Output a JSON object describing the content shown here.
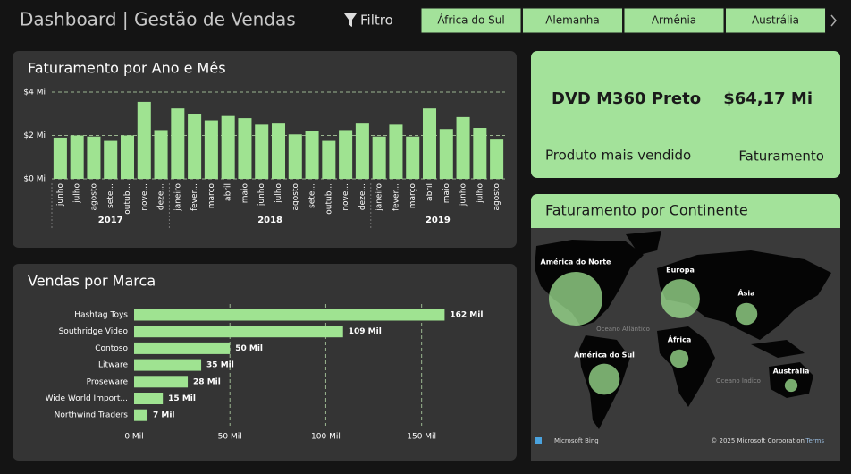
{
  "header": {
    "title": "Dashboard | Gestão de Vendas",
    "filter_label": "Filtro",
    "filter_buttons": [
      "África do Sul",
      "Alemanha",
      "Armênia",
      "Austrália"
    ]
  },
  "kpi": {
    "product": "DVD M360 Preto",
    "revenue": "$64,17 Mi",
    "product_caption": "Produto mais vendido",
    "revenue_caption": "Faturamento"
  },
  "chart_data": [
    {
      "type": "bar",
      "title": "Faturamento por Ano e Mês",
      "color": "#9fe391",
      "groups": [
        {
          "label": "2017",
          "categories": [
            "junho",
            "julho",
            "agosto",
            "sete...",
            "outub...",
            "nove...",
            "deze..."
          ],
          "values": [
            1.9,
            2.0,
            1.95,
            1.75,
            2.0,
            3.55,
            2.25
          ]
        },
        {
          "label": "2018",
          "categories": [
            "janeiro",
            "fever...",
            "março",
            "abril",
            "maio",
            "junho",
            "julho",
            "agosto",
            "sete...",
            "outub...",
            "nove...",
            "deze..."
          ],
          "values": [
            3.25,
            3.0,
            2.7,
            2.9,
            2.8,
            2.5,
            2.55,
            2.05,
            2.2,
            1.75,
            2.25,
            2.55
          ]
        },
        {
          "label": "2019",
          "categories": [
            "janeiro",
            "fever...",
            "março",
            "abril",
            "maio",
            "junho",
            "julho",
            "agosto"
          ],
          "values": [
            1.95,
            2.5,
            1.95,
            3.25,
            2.3,
            2.85,
            2.35,
            1.85
          ]
        }
      ],
      "ylim": [
        0,
        4
      ],
      "yticks": [
        {
          "value": 0,
          "label": "$0 Mi"
        },
        {
          "value": 2,
          "label": "$2 Mi"
        },
        {
          "value": 4,
          "label": "$4 Mi"
        }
      ],
      "grid": true
    },
    {
      "type": "barh",
      "title": "Vendas por Marca",
      "color": "#9fe391",
      "categories": [
        "Hashtag Toys",
        "Southridge Video",
        "Contoso",
        "Litware",
        "Proseware",
        "Wide World Import...",
        "Northwind Traders"
      ],
      "values": [
        162,
        109,
        50,
        35,
        28,
        15,
        7
      ],
      "value_labels": [
        "162 Mil",
        "109 Mil",
        "50 Mil",
        "35 Mil",
        "28 Mil",
        "15 Mil",
        "7 Mil"
      ],
      "xlim": [
        0,
        180
      ],
      "xticks": [
        {
          "value": 0,
          "label": "0 Mil"
        },
        {
          "value": 50,
          "label": "50 Mil"
        },
        {
          "value": 100,
          "label": "100 Mil"
        },
        {
          "value": 150,
          "label": "150 Mil"
        }
      ],
      "grid": true
    },
    {
      "type": "bubble_map",
      "title": "Faturamento por Continente",
      "color": "#9fe391",
      "categories": [
        "América do Norte",
        "Europa",
        "Ásia",
        "África",
        "América do Sul",
        "Austrália"
      ],
      "values": [
        30,
        16,
        5,
        3.5,
        10,
        1.7
      ],
      "map_labels": [
        "Oceano Atlântico",
        "Oceano Índico"
      ],
      "attribution": [
        "Microsoft Bing",
        "© 2025 Microsoft Corporation",
        "Terms"
      ]
    }
  ]
}
